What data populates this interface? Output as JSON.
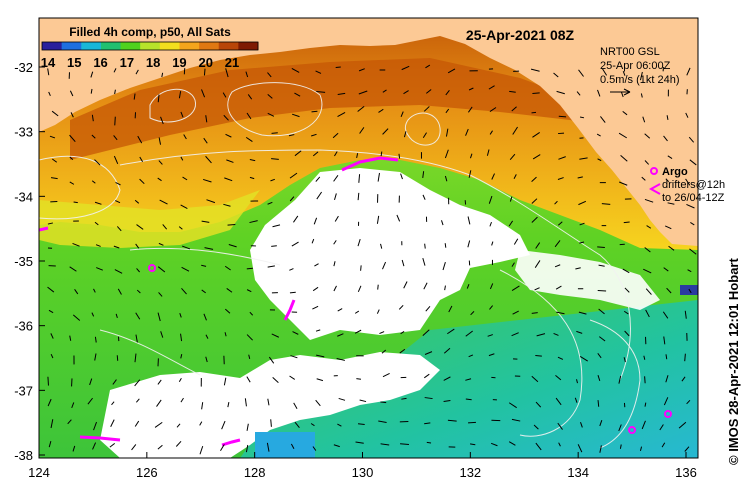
{
  "map": {
    "legend_title": "Filled 4h comp, p50, All Sats",
    "colorbar_ticks": [
      "14",
      "15",
      "16",
      "17",
      "18",
      "19",
      "20",
      "21"
    ],
    "colorbar_colors": [
      "#2a1f9c",
      "#1e6fe0",
      "#19b7d8",
      "#20c070",
      "#4fd21e",
      "#b7e32a",
      "#f3df1e",
      "#f4a51c",
      "#e07812",
      "#b84508",
      "#7e1a02"
    ],
    "date_title": "25-Apr-2021 08Z",
    "wind_info": [
      "NRT00 GSL",
      "25-Apr 06:00Z",
      "0.5m/s (1kt 24h)"
    ],
    "argo_label": "Argo",
    "drifter_label": [
      "drifters@12h",
      "to 26/04-12Z"
    ],
    "side_credit": "© IMOS 28-Apr-2021 12:01 Hobart",
    "x_ticks": [
      "124",
      "126",
      "128",
      "130",
      "132",
      "134",
      "136"
    ],
    "y_ticks": [
      "-32",
      "-33",
      "-34",
      "-35",
      "-36",
      "-37",
      "-38"
    ],
    "land_color": "#fcc995",
    "argo_color": "#ff00ff"
  }
}
